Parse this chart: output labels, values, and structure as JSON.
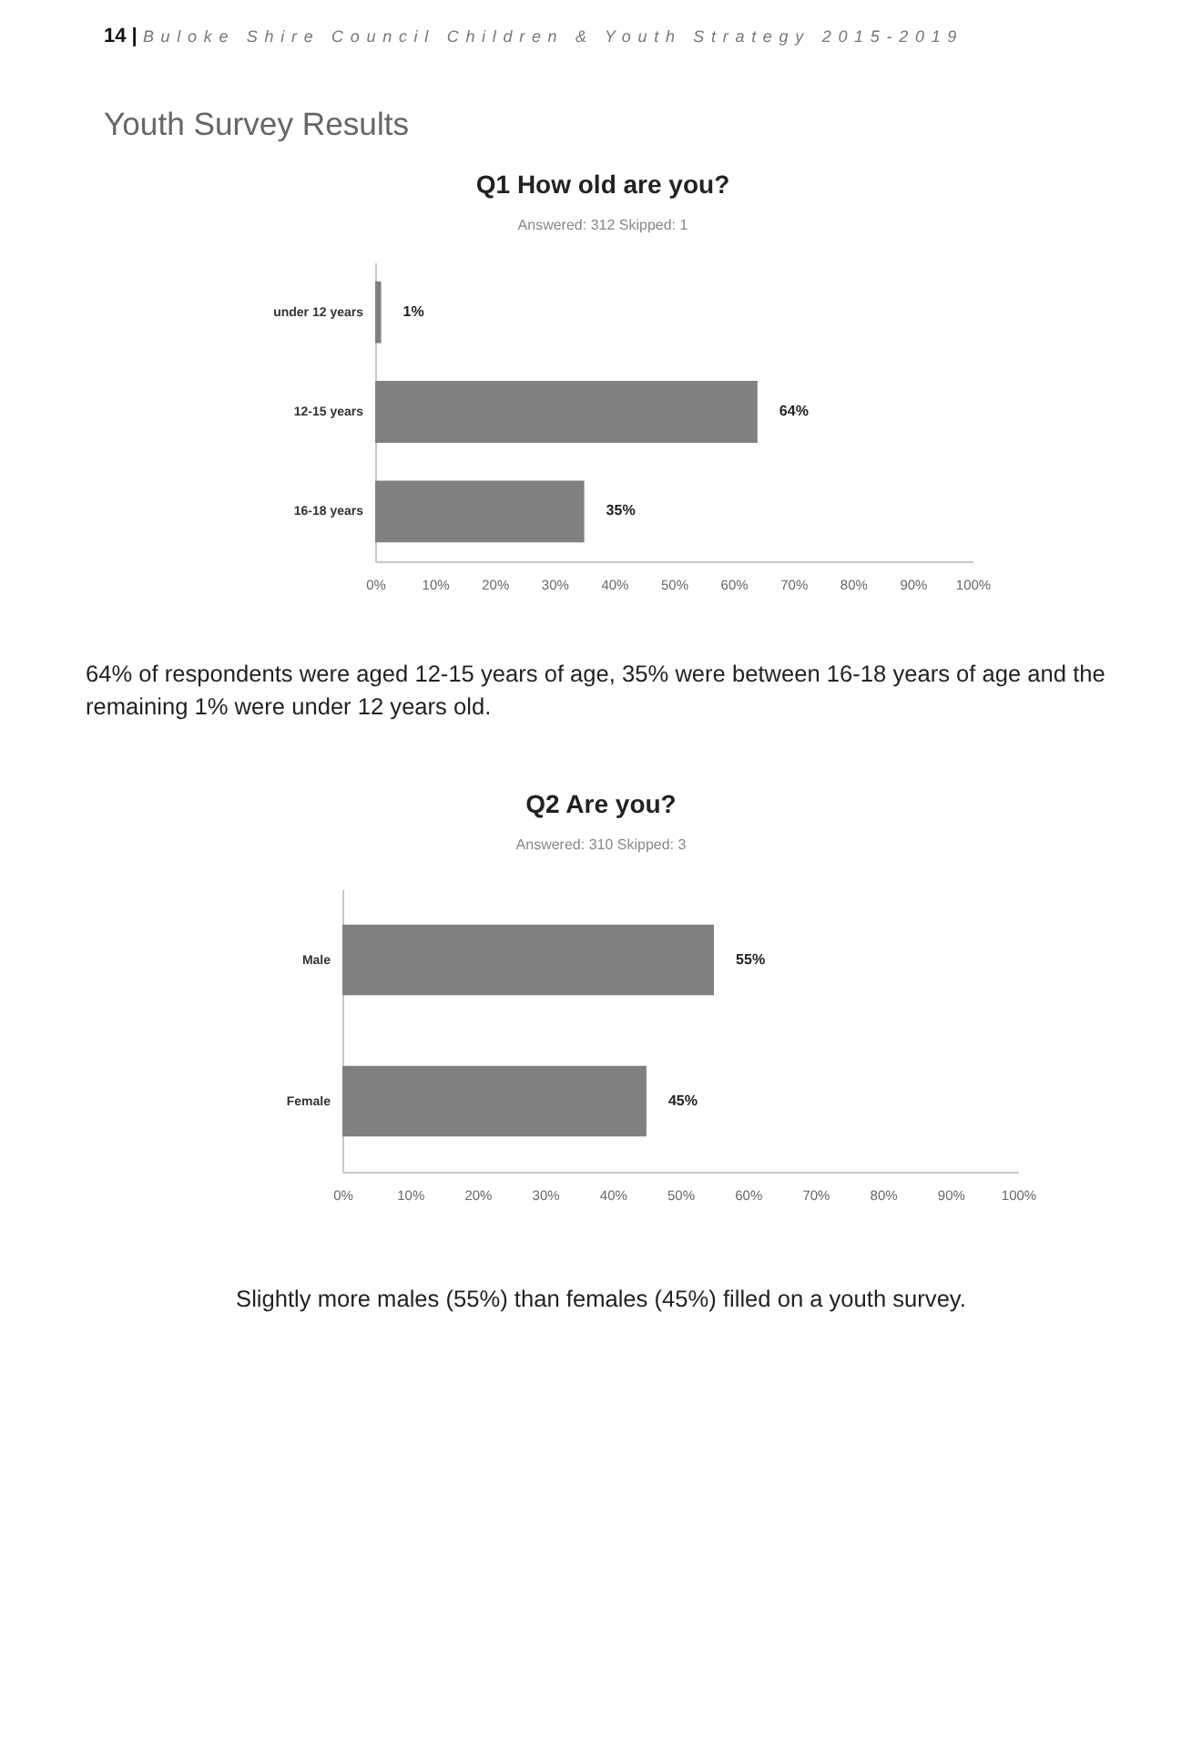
{
  "chart_data": [
    {
      "type": "bar",
      "orientation": "horizontal",
      "title": "Q1 How old are you?",
      "subtitle": "Answered: 312 Skipped: 1",
      "categories": [
        "under 12 years",
        "12-15 years",
        "16-18 years"
      ],
      "values": [
        1,
        64,
        35
      ],
      "value_labels": [
        "1%",
        "64%",
        "35%"
      ],
      "color": "#808080",
      "xlim": [
        0,
        100
      ],
      "xticks": [
        {
          "value": 0,
          "label": "0%"
        },
        {
          "value": 10,
          "label": "10%"
        },
        {
          "value": 20,
          "label": "20%"
        },
        {
          "value": 30,
          "label": "30%"
        },
        {
          "value": 40,
          "label": "40%"
        },
        {
          "value": 50,
          "label": "50%"
        },
        {
          "value": 60,
          "label": "60%"
        },
        {
          "value": 70,
          "label": "70%"
        },
        {
          "value": 80,
          "label": "80%"
        },
        {
          "value": 90,
          "label": "90%"
        },
        {
          "value": 100,
          "label": "100%"
        }
      ],
      "annotations": [
        "14 | Buloke Shire Council Children & Youth Strategy 2015-2019",
        "Youth Survey Results",
        "64% of respondents were aged 12-15 years of age, 35% were between 16-18 years of age and the remaining 1% were under 12 years old."
      ]
    },
    {
      "type": "bar",
      "orientation": "horizontal",
      "title": "Q2 Are you?",
      "subtitle": "Answered: 310 Skipped: 3",
      "categories": [
        "Male",
        "Female"
      ],
      "values": [
        55,
        45
      ],
      "value_labels": [
        "55%",
        "45%"
      ],
      "color": "#808080",
      "xlim": [
        0,
        100
      ],
      "xticks": [
        {
          "value": 0,
          "label": "0%"
        },
        {
          "value": 10,
          "label": "10%"
        },
        {
          "value": 20,
          "label": "20%"
        },
        {
          "value": 30,
          "label": "30%"
        },
        {
          "value": 40,
          "label": "40%"
        },
        {
          "value": 50,
          "label": "50%"
        },
        {
          "value": 60,
          "label": "60%"
        },
        {
          "value": 70,
          "label": "70%"
        },
        {
          "value": 80,
          "label": "80%"
        },
        {
          "value": 90,
          "label": "90%"
        },
        {
          "value": 100,
          "label": "100%"
        }
      ],
      "annotations": [
        "Slightly more males (55%) than females (45%) filled on a youth survey."
      ]
    }
  ]
}
